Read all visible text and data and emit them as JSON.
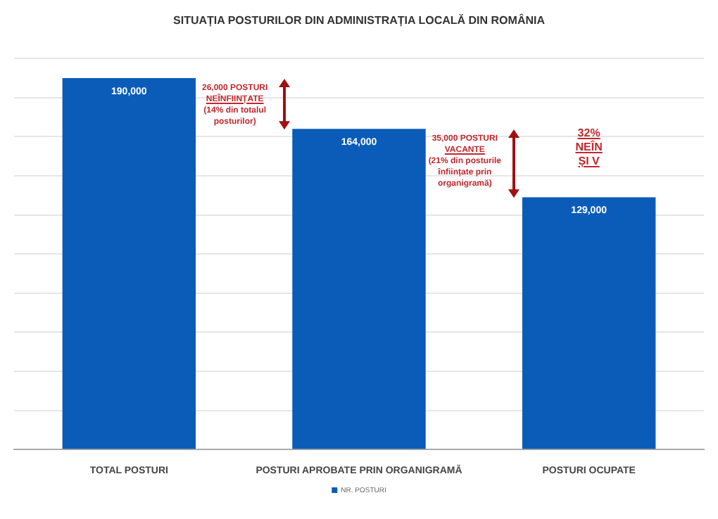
{
  "chart_data": {
    "type": "bar",
    "title": "SITUAȚIA POSTURILOR DIN ADMINISTRAȚIA LOCALĂ DIN ROMÂNIA",
    "categories": [
      "TOTAL POSTURI",
      "POSTURI APROBATE PRIN ORGANIGRAMĂ",
      "POSTURI OCUPATE"
    ],
    "series": [
      {
        "name": "NR. POSTURI",
        "color": "#0b5cb8",
        "values": [
          190000,
          164000,
          129000
        ],
        "value_labels": [
          "190,000",
          "164,000",
          "129,000"
        ]
      }
    ],
    "tick_labels": "x",
    "grid": "y",
    "legend": "bottom",
    "annotations": [
      "26,000 POSTURI\nNEÎNFIINȚATE\n(14% din totalul\nposturilor)",
      "35,000 POSTURI\nVACANTE\n(21% din posturile\nînființate prin\norganigramă)",
      "32%\nNEÎN\nȘI V"
    ]
  }
}
